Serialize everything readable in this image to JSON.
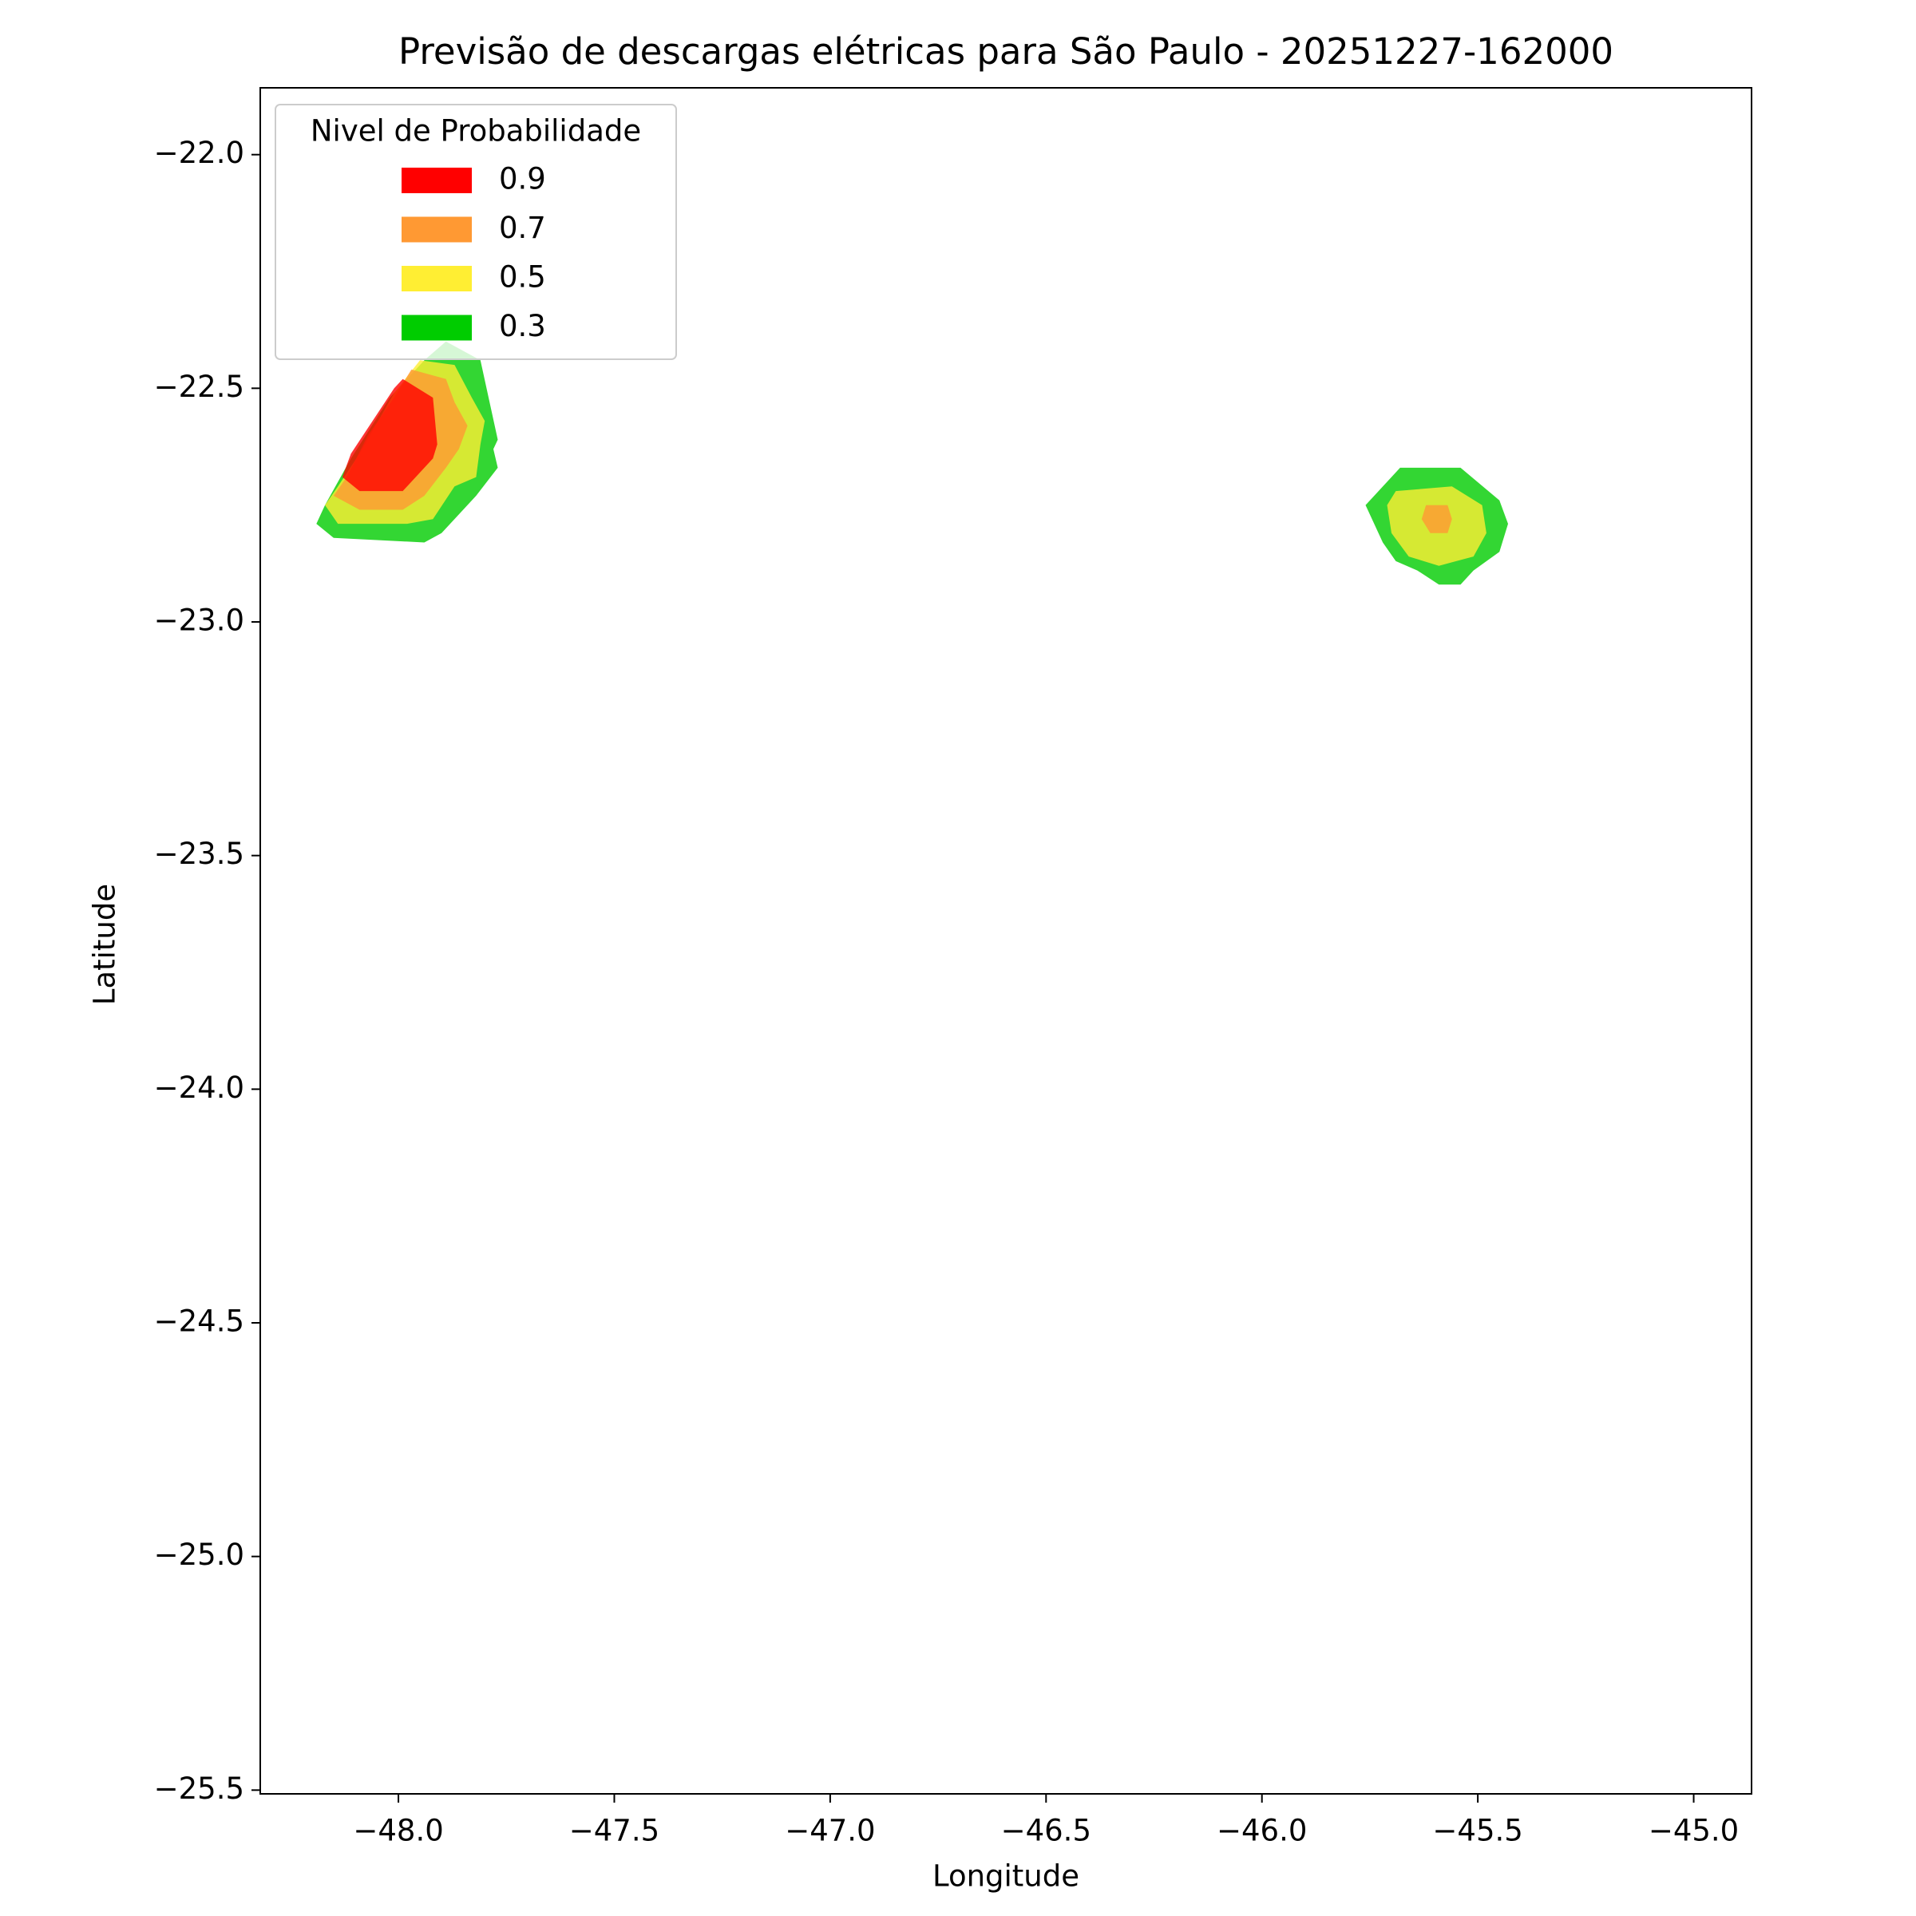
{
  "chart_data": {
    "type": "contour",
    "title": "Previsão de descargas elétricas para São Paulo - 20251227-162000",
    "xlabel": "Longitude",
    "ylabel": "Latitude",
    "legend_title": "Nivel de Probabilidade",
    "legend_position": "upper left",
    "alpha": 0.8,
    "xlim": [
      -48.32,
      -44.866
    ],
    "ylim": [
      -25.508,
      -21.857
    ],
    "xticks": [
      {
        "value": -48.0,
        "label": "−48.0"
      },
      {
        "value": -47.5,
        "label": "−47.5"
      },
      {
        "value": -47.0,
        "label": "−47.0"
      },
      {
        "value": -46.5,
        "label": "−46.5"
      },
      {
        "value": -46.0,
        "label": "−46.0"
      },
      {
        "value": -45.5,
        "label": "−45.5"
      },
      {
        "value": -45.0,
        "label": "−45.0"
      }
    ],
    "yticks": [
      {
        "value": -22.0,
        "label": "−22.0"
      },
      {
        "value": -22.5,
        "label": "−22.5"
      },
      {
        "value": -23.0,
        "label": "−23.0"
      },
      {
        "value": -23.5,
        "label": "−23.5"
      },
      {
        "value": -24.0,
        "label": "−24.0"
      },
      {
        "value": -24.5,
        "label": "−24.5"
      },
      {
        "value": -25.0,
        "label": "−25.0"
      },
      {
        "value": -25.5,
        "label": "−25.5"
      }
    ],
    "series": [
      {
        "name": "0.9",
        "color": "#ff0000",
        "polygons": [
          {
            "x": [
              -47.99,
              -47.92,
              -47.91,
              -47.92,
              -47.99,
              -48.09,
              -48.13,
              -48.11,
              -48.01
            ],
            "y": [
              -22.48,
              -22.52,
              -22.62,
              -22.65,
              -22.72,
              -22.72,
              -22.69,
              -22.64,
              -22.5
            ]
          }
        ]
      },
      {
        "name": "0.7",
        "color": "#ff9933",
        "polygons": [
          {
            "x": [
              -47.97,
              -47.89,
              -47.87,
              -47.84,
              -47.86,
              -47.89,
              -47.94,
              -47.99,
              -48.09,
              -48.15,
              -48.12,
              -48.07,
              -48.01
            ],
            "y": [
              -22.46,
              -22.48,
              -22.53,
              -22.58,
              -22.63,
              -22.67,
              -22.73,
              -22.76,
              -22.76,
              -22.73,
              -22.69,
              -22.6,
              -22.52
            ]
          },
          {
            "x": [
              -45.62,
              -45.57,
              -45.56,
              -45.57,
              -45.61,
              -45.63
            ],
            "y": [
              -22.75,
              -22.75,
              -22.78,
              -22.81,
              -22.81,
              -22.78
            ]
          }
        ]
      },
      {
        "name": "0.5",
        "color": "#ffee33",
        "polygons": [
          {
            "x": [
              -47.95,
              -47.87,
              -47.83,
              -47.8,
              -47.81,
              -47.82,
              -47.87,
              -47.92,
              -47.98,
              -48.14,
              -48.17,
              -48.14,
              -48.09,
              -48.01
            ],
            "y": [
              -22.44,
              -22.45,
              -22.52,
              -22.57,
              -22.62,
              -22.69,
              -22.71,
              -22.78,
              -22.79,
              -22.79,
              -22.75,
              -22.71,
              -22.64,
              -22.51
            ]
          },
          {
            "x": [
              -45.69,
              -45.56,
              -45.49,
              -45.48,
              -45.51,
              -45.55,
              -45.59,
              -45.66,
              -45.7,
              -45.71
            ],
            "y": [
              -22.72,
              -22.71,
              -22.75,
              -22.81,
              -22.86,
              -22.87,
              -22.88,
              -22.86,
              -22.81,
              -22.75
            ]
          }
        ]
      },
      {
        "name": "0.3",
        "color": "#00cc00",
        "polygons": [
          {
            "x": [
              -47.94,
              -47.89,
              -47.81,
              -47.77,
              -47.78,
              -47.77,
              -47.82,
              -47.9,
              -47.94,
              -48.15,
              -48.19,
              -48.17,
              -48.11,
              -48.02
            ],
            "y": [
              -22.44,
              -22.4,
              -22.44,
              -22.61,
              -22.63,
              -22.67,
              -22.73,
              -22.81,
              -22.83,
              -22.82,
              -22.79,
              -22.75,
              -22.65,
              -22.52
            ]
          },
          {
            "x": [
              -45.68,
              -45.54,
              -45.45,
              -45.43,
              -45.45,
              -45.51,
              -45.54,
              -45.59,
              -45.64,
              -45.69,
              -45.72,
              -45.76
            ],
            "y": [
              -22.67,
              -22.67,
              -22.74,
              -22.79,
              -22.85,
              -22.89,
              -22.92,
              -22.92,
              -22.89,
              -22.87,
              -22.83,
              -22.75
            ]
          }
        ]
      }
    ]
  }
}
